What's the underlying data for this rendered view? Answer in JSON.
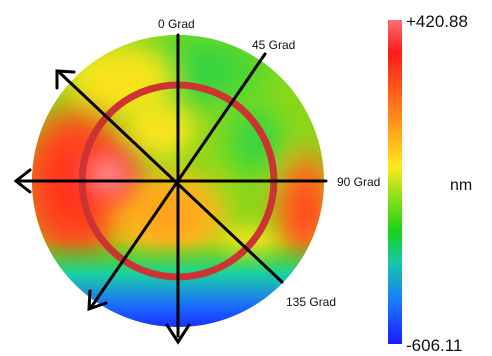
{
  "figure": {
    "angle_labels": {
      "a0": "0 Grad",
      "a45": "45 Grad",
      "a90": "90 Grad",
      "a135": "135 Grad"
    },
    "colorbar": {
      "max_label": "+420.88",
      "min_label": "-606.11",
      "unit": "nm",
      "colors": [
        "#ff5a5a",
        "#ff1a1a",
        "#ff8c1a",
        "#ffe81a",
        "#7fe01a",
        "#1ad21a",
        "#16c8a8",
        "#1a78ff",
        "#1a1aff"
      ]
    },
    "map_colors": {
      "hot_spot": "#ff6060",
      "red": "#ff2a1a",
      "orange": "#ff8a1a",
      "yellow": "#ffd21a",
      "green": "#3ad21a",
      "teal": "#16c8a8",
      "blue": "#1a3aff"
    },
    "ring_color": "#cc3333",
    "axis_color": "#000000"
  }
}
